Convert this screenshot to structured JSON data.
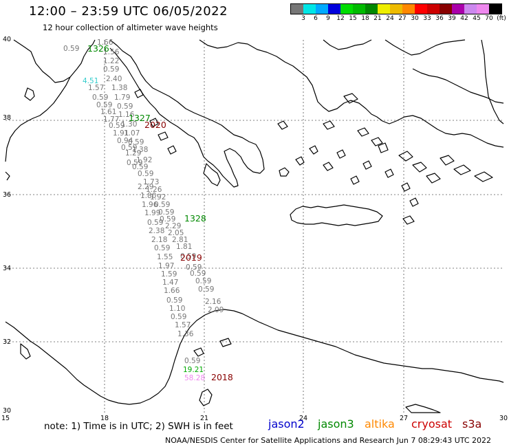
{
  "header": {
    "title": "12:00 – 23:59 UTC 06/05/2022",
    "subtitle": "12 hour collection of altimeter wave heights"
  },
  "colorbar": {
    "colors": [
      "#777777",
      "#00e6e6",
      "#00aaff",
      "#0000dd",
      "#00dd00",
      "#00bb00",
      "#008800",
      "#eeee00",
      "#eebb00",
      "#ff8800",
      "#ff0000",
      "#cc0000",
      "#880000",
      "#aa00aa",
      "#cc88ee",
      "#ee88ee",
      "#000000"
    ],
    "labels": [
      "3",
      "6",
      "9",
      "12",
      "15",
      "18",
      "21",
      "24",
      "27",
      "30",
      "33",
      "36",
      "39",
      "42",
      "45",
      "70",
      "(ft)"
    ]
  },
  "axes": {
    "lat_labels": [
      "40",
      "38",
      "36",
      "34",
      "32",
      "30"
    ],
    "lon_labels": [
      "15",
      "18",
      "21",
      "24",
      "27",
      "30"
    ]
  },
  "track": {
    "values": [
      {
        "v": "1.66",
        "c": "#777777"
      },
      {
        "v": "0.59",
        "c": "#777777"
      },
      {
        "v": "1.56",
        "c": "#777777"
      },
      {
        "v": "1.22",
        "c": "#777777"
      },
      {
        "v": "0.59",
        "c": "#777777"
      },
      {
        "v": "2.40",
        "c": "#777777"
      },
      {
        "v": "4.51",
        "c": "#33cccc"
      },
      {
        "v": "1.57",
        "c": "#777777"
      },
      {
        "v": "1.38",
        "c": "#777777"
      },
      {
        "v": "0.59",
        "c": "#777777"
      },
      {
        "v": "1.79",
        "c": "#777777"
      },
      {
        "v": "0.59",
        "c": "#777777"
      },
      {
        "v": "0.59",
        "c": "#777777"
      },
      {
        "v": "1.61",
        "c": "#777777"
      },
      {
        "v": "1.16",
        "c": "#777777"
      },
      {
        "v": "1.77",
        "c": "#777777"
      },
      {
        "v": "0.59",
        "c": "#777777"
      },
      {
        "v": "1.30",
        "c": "#777777"
      },
      {
        "v": "1.91",
        "c": "#777777"
      },
      {
        "v": "1.07",
        "c": "#777777"
      },
      {
        "v": "0.94",
        "c": "#777777"
      },
      {
        "v": "0.59",
        "c": "#777777"
      },
      {
        "v": "0.59",
        "c": "#777777"
      },
      {
        "v": "1.38",
        "c": "#777777"
      },
      {
        "v": "1.29",
        "c": "#777777"
      },
      {
        "v": "1.92",
        "c": "#777777"
      },
      {
        "v": "0.59",
        "c": "#777777"
      },
      {
        "v": "0.59",
        "c": "#777777"
      },
      {
        "v": "0.59",
        "c": "#777777"
      },
      {
        "v": "1.73",
        "c": "#777777"
      },
      {
        "v": "2.29",
        "c": "#777777"
      },
      {
        "v": "1.26",
        "c": "#777777"
      },
      {
        "v": "1.80",
        "c": "#777777"
      },
      {
        "v": "1.92",
        "c": "#777777"
      },
      {
        "v": "1.96",
        "c": "#777777"
      },
      {
        "v": "0.59",
        "c": "#777777"
      },
      {
        "v": "0.59",
        "c": "#777777"
      },
      {
        "v": "1.99",
        "c": "#777777"
      },
      {
        "v": "0.59",
        "c": "#777777"
      },
      {
        "v": "0.59",
        "c": "#777777"
      },
      {
        "v": "2.29",
        "c": "#777777"
      },
      {
        "v": "2.38",
        "c": "#777777"
      },
      {
        "v": "2.05",
        "c": "#777777"
      },
      {
        "v": "2.18",
        "c": "#777777"
      },
      {
        "v": "2.81",
        "c": "#777777"
      },
      {
        "v": "0.59",
        "c": "#777777"
      },
      {
        "v": "1.81",
        "c": "#777777"
      },
      {
        "v": "1.55",
        "c": "#777777"
      },
      {
        "v": "0.59",
        "c": "#777777"
      },
      {
        "v": "1.97",
        "c": "#777777"
      },
      {
        "v": "0.59",
        "c": "#777777"
      },
      {
        "v": "1.59",
        "c": "#777777"
      },
      {
        "v": "0.59",
        "c": "#777777"
      },
      {
        "v": "1.47",
        "c": "#777777"
      },
      {
        "v": "0.59",
        "c": "#777777"
      },
      {
        "v": "1.66",
        "c": "#777777"
      },
      {
        "v": "0.59",
        "c": "#777777"
      },
      {
        "v": "0.59",
        "c": "#777777"
      },
      {
        "v": "2.16",
        "c": "#777777"
      },
      {
        "v": "1.10",
        "c": "#777777"
      },
      {
        "v": "2.09",
        "c": "#777777"
      },
      {
        "v": "0.59",
        "c": "#777777"
      },
      {
        "v": "1.57",
        "c": "#777777"
      },
      {
        "v": "1.36",
        "c": "#777777"
      },
      {
        "v": "0.59",
        "c": "#777777"
      },
      {
        "v": "19.21",
        "c": "#00aa00"
      },
      {
        "v": "58.28",
        "c": "#ee88ee"
      }
    ],
    "times": [
      {
        "t": "1326",
        "c": "#008800"
      },
      {
        "t": "1327",
        "c": "#008800"
      },
      {
        "t": "2020",
        "c": "#880000"
      },
      {
        "t": "1328",
        "c": "#008800"
      },
      {
        "t": "2019",
        "c": "#880000"
      },
      {
        "t": "2018",
        "c": "#880000"
      }
    ]
  },
  "footer": {
    "note": "note:  1) Time is in UTC;  2) SWH is in feet",
    "satellites": [
      {
        "name": "jason2",
        "color": "#0000cc"
      },
      {
        "name": "jason3",
        "color": "#008800"
      },
      {
        "name": "altika",
        "color": "#ff8800"
      },
      {
        "name": "cryosat",
        "color": "#cc0000"
      },
      {
        "name": "s3a",
        "color": "#880000"
      }
    ],
    "credit": "NOAA/NESDIS Center for Satellite Applications and Research    Jun  7 08:29:43 UTC 2022"
  }
}
